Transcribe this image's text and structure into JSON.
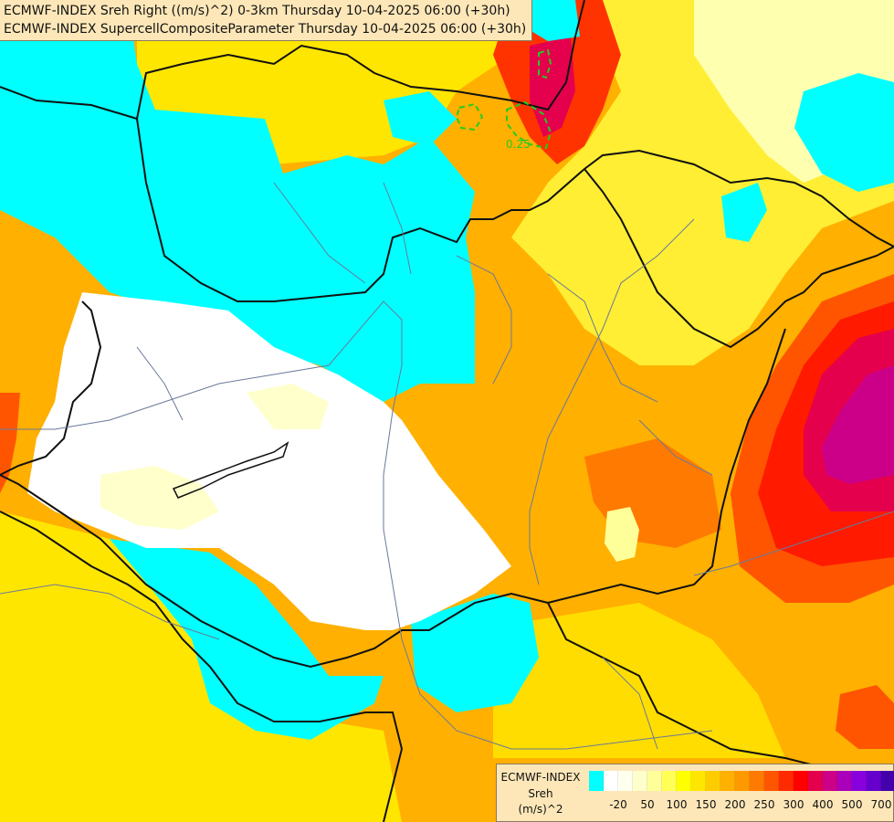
{
  "header": {
    "line1": "ECMWF-INDEX Sreh Right ((m/s)^2) 0-3km Thursday 10-04-2025 06:00 (+30h)",
    "line2": "ECMWF-INDEX SupercellCompositeParameter Thursday 10-04-2025 06:00 (+30h)"
  },
  "map": {
    "contour_label": "0.25"
  },
  "legend": {
    "source": "ECMWF-INDEX",
    "variable": "Sreh",
    "unit": "(m/s)^2",
    "colors": [
      "#00ffff",
      "#ffffff",
      "#ffffee",
      "#ffffcc",
      "#ffff99",
      "#ffff55",
      "#ffff00",
      "#ffe600",
      "#ffcc00",
      "#ffb000",
      "#ff9900",
      "#ff7a00",
      "#ff5500",
      "#ff2a00",
      "#ff0000",
      "#e4004c",
      "#cc0088",
      "#aa00bb",
      "#8800dd",
      "#6600cc",
      "#4400aa",
      "#220088",
      "#000077"
    ],
    "ticks": [
      "-20",
      "50",
      "100",
      "150",
      "200",
      "250",
      "300",
      "400",
      "500",
      "700"
    ]
  }
}
